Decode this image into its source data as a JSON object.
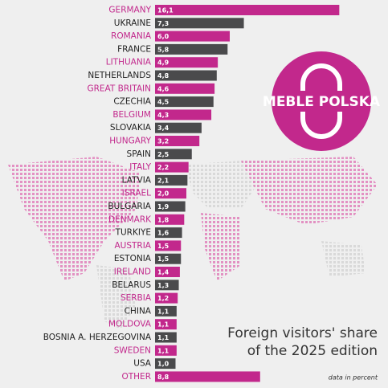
{
  "chart_data": {
    "type": "bar",
    "title_lines": [
      "Foreign visitors' share",
      "of the 2025 edition"
    ],
    "note": "data in percent",
    "logo": "MEBLE POLSKA",
    "categories": [
      "GERMANY",
      "UKRAINE",
      "ROMANIA",
      "FRANCE",
      "LITHUANIA",
      "NETHERLANDS",
      "GREAT BRITAIN",
      "CZECHIA",
      "BELGIUM",
      "SLOVAKIA",
      "HUNGARY",
      "SPAIN",
      "ITALY",
      "LATVIA",
      "ISRAEL",
      "BULGARIA",
      "DENMARK",
      "TURKIYE",
      "AUSTRIA",
      "ESTONIA",
      "IRELAND",
      "BELARUS",
      "SERBIA",
      "CHINA",
      "MOLDOVA",
      "BOSNIA A. HERZEGOVINA",
      "SWEDEN",
      "USA",
      "OTHER"
    ],
    "values": [
      16.1,
      7.3,
      6.0,
      5.8,
      4.9,
      4.8,
      4.6,
      4.5,
      4.3,
      3.4,
      3.2,
      2.5,
      2.2,
      2.1,
      2.0,
      1.9,
      1.8,
      1.6,
      1.5,
      1.5,
      1.4,
      1.3,
      1.2,
      1.1,
      1.1,
      1.1,
      1.1,
      1.0,
      8.8
    ],
    "value_labels": [
      "16,1",
      "7,3",
      "6,0",
      "5,8",
      "4,9",
      "4,8",
      "4,6",
      "4,5",
      "4,3",
      "3,4",
      "3,2",
      "2,5",
      "2,2",
      "2,1",
      "2,0",
      "1,9",
      "1,8",
      "1,6",
      "1,5",
      "1,5",
      "1,4",
      "1,3",
      "1,2",
      "1,1",
      "1,1",
      "1,1",
      "1,1",
      "1,0",
      "8,8"
    ],
    "colors": [
      "#c2288c",
      "#4a4a4c"
    ]
  }
}
